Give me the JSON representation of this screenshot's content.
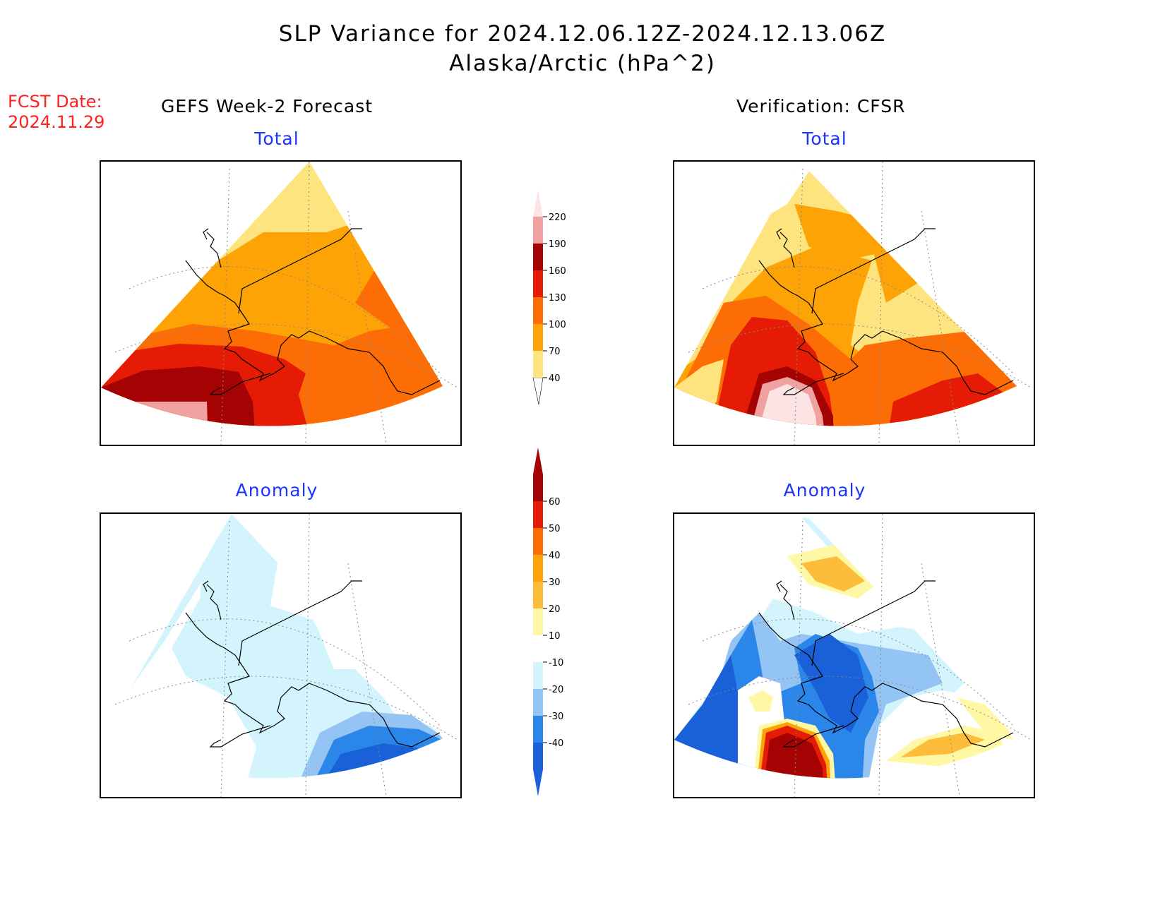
{
  "title": {
    "line1": "SLP Variance for 2024.12.06.12Z-2024.12.13.06Z",
    "line2": "Alaska/Arctic (hPa^2)"
  },
  "forecast_date": {
    "label": "FCST Date:",
    "value": "2024.11.29"
  },
  "columns": {
    "left_header": "GEFS Week-2 Forecast",
    "right_header": "Verification: CFSR"
  },
  "panels": {
    "top_left_title": "Total",
    "top_right_title": "Total",
    "bottom_left_title": "Anomaly",
    "bottom_right_title": "Anomaly"
  },
  "total_colorbar": {
    "labels": [
      "40",
      "70",
      "100",
      "130",
      "160",
      "190",
      "220"
    ],
    "colors": [
      "#fde47f",
      "#fea305",
      "#fd6d05",
      "#e51b05",
      "#a50303",
      "#f2a1a1",
      "#fde4e4"
    ]
  },
  "anomaly_colorbar": {
    "labels": [
      "-40",
      "-30",
      "-20",
      "-10",
      "10",
      "20",
      "30",
      "40",
      "50",
      "60"
    ],
    "colors": [
      "#1a60d8",
      "#2a86e8",
      "#94c4f4",
      "#d4f4fd",
      "#ffffff",
      "#fef8a5",
      "#fdbc3a",
      "#fea305",
      "#fd6d05",
      "#e51b05",
      "#a50303"
    ]
  }
}
